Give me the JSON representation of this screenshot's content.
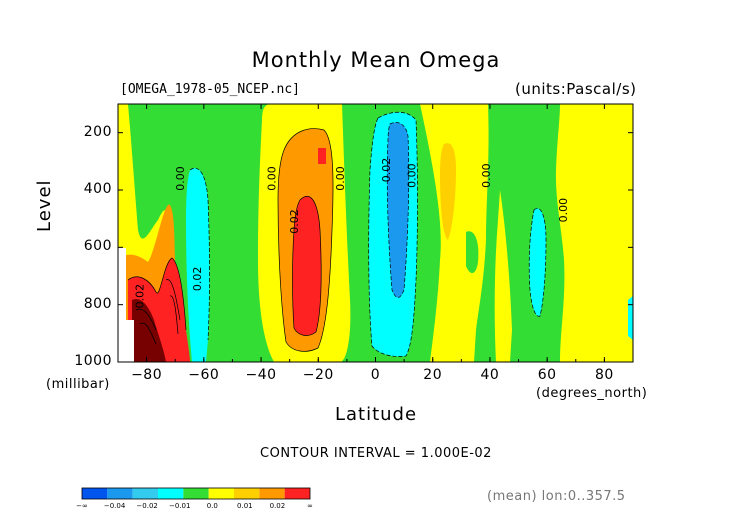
{
  "chart_data": {
    "type": "heatmap",
    "subtype": "filled-contour",
    "title": "Monthly Mean Omega",
    "file_label": "[OMEGA_1978-05_NCEP.nc]",
    "units_label": "(units:Pascal/s)",
    "xlabel": "Latitude",
    "x_unit_label": "(degrees_north)",
    "ylabel": "Level",
    "y_unit_label": "(millibar)",
    "xlim": [
      -90,
      90
    ],
    "ylim": [
      1000,
      100
    ],
    "x_ticks": [
      -80,
      -60,
      -40,
      -20,
      0,
      20,
      40,
      60,
      80
    ],
    "x_tick_labels": [
      "−80",
      "−60",
      "−40",
      "−20",
      "0",
      "20",
      "40",
      "60",
      "80"
    ],
    "y_ticks": [
      200,
      400,
      600,
      800,
      1000
    ],
    "y_tick_labels": [
      "200",
      "400",
      "600",
      "800",
      "1000"
    ],
    "contour_interval_label": "CONTOUR INTERVAL = 1.000E-02",
    "mean_note": "(mean) lon:0..357.5",
    "contour_labels": [
      {
        "text": "0.02",
        "lat": -81,
        "level": 770
      },
      {
        "text": "0.00",
        "lat": -67,
        "level": 360
      },
      {
        "text": "0.02",
        "lat": -61,
        "level": 710
      },
      {
        "text": "0.00",
        "lat": -35,
        "level": 360
      },
      {
        "text": "0.02",
        "lat": -27,
        "level": 510
      },
      {
        "text": "0.00",
        "lat": -11,
        "level": 360
      },
      {
        "text": "0.02",
        "lat": 5,
        "level": 330
      },
      {
        "text": "0.00",
        "lat": 14,
        "level": 350
      },
      {
        "text": "0.00",
        "lat": 40,
        "level": 350
      },
      {
        "text": "0.00",
        "lat": 67,
        "level": 470
      }
    ],
    "colorbar": {
      "colors": [
        "#0055ee",
        "#1a99ee",
        "#33ccee",
        "#00ffff",
        "#33dd33",
        "#ffff00",
        "#ffd000",
        "#ff9900",
        "#ff2222"
      ],
      "labels": [
        "−∞",
        "−0.04",
        "−0.02",
        "−0.01",
        "0.0",
        "0.01",
        "0.02",
        "∞"
      ]
    },
    "features": [
      {
        "kind": "positive-cell",
        "lat_range": [
          -36,
          -16
        ],
        "level_range": [
          120,
          980
        ],
        "peak": 0.03
      },
      {
        "kind": "positive-cell",
        "lat_range": [
          -90,
          -70
        ],
        "level_range": [
          600,
          1000
        ],
        "peak": 0.06
      },
      {
        "kind": "negative-cell",
        "lat_range": [
          -2,
          18
        ],
        "level_range": [
          120,
          980
        ],
        "peak": -0.02
      },
      {
        "kind": "negative-cell",
        "lat_range": [
          -70,
          -60
        ],
        "level_range": [
          300,
          1000
        ],
        "peak": -0.02
      },
      {
        "kind": "negative-cell",
        "lat_range": [
          52,
          62
        ],
        "level_range": [
          520,
          900
        ],
        "peak": -0.01
      },
      {
        "kind": "positive-band",
        "lat_range": [
          20,
          32
        ],
        "level_range": [
          150,
          980
        ],
        "peak": 0.01
      },
      {
        "kind": "positive-band",
        "lat_range": [
          60,
          90
        ],
        "level_range": [
          100,
          1000
        ],
        "peak": 0.01
      }
    ]
  }
}
